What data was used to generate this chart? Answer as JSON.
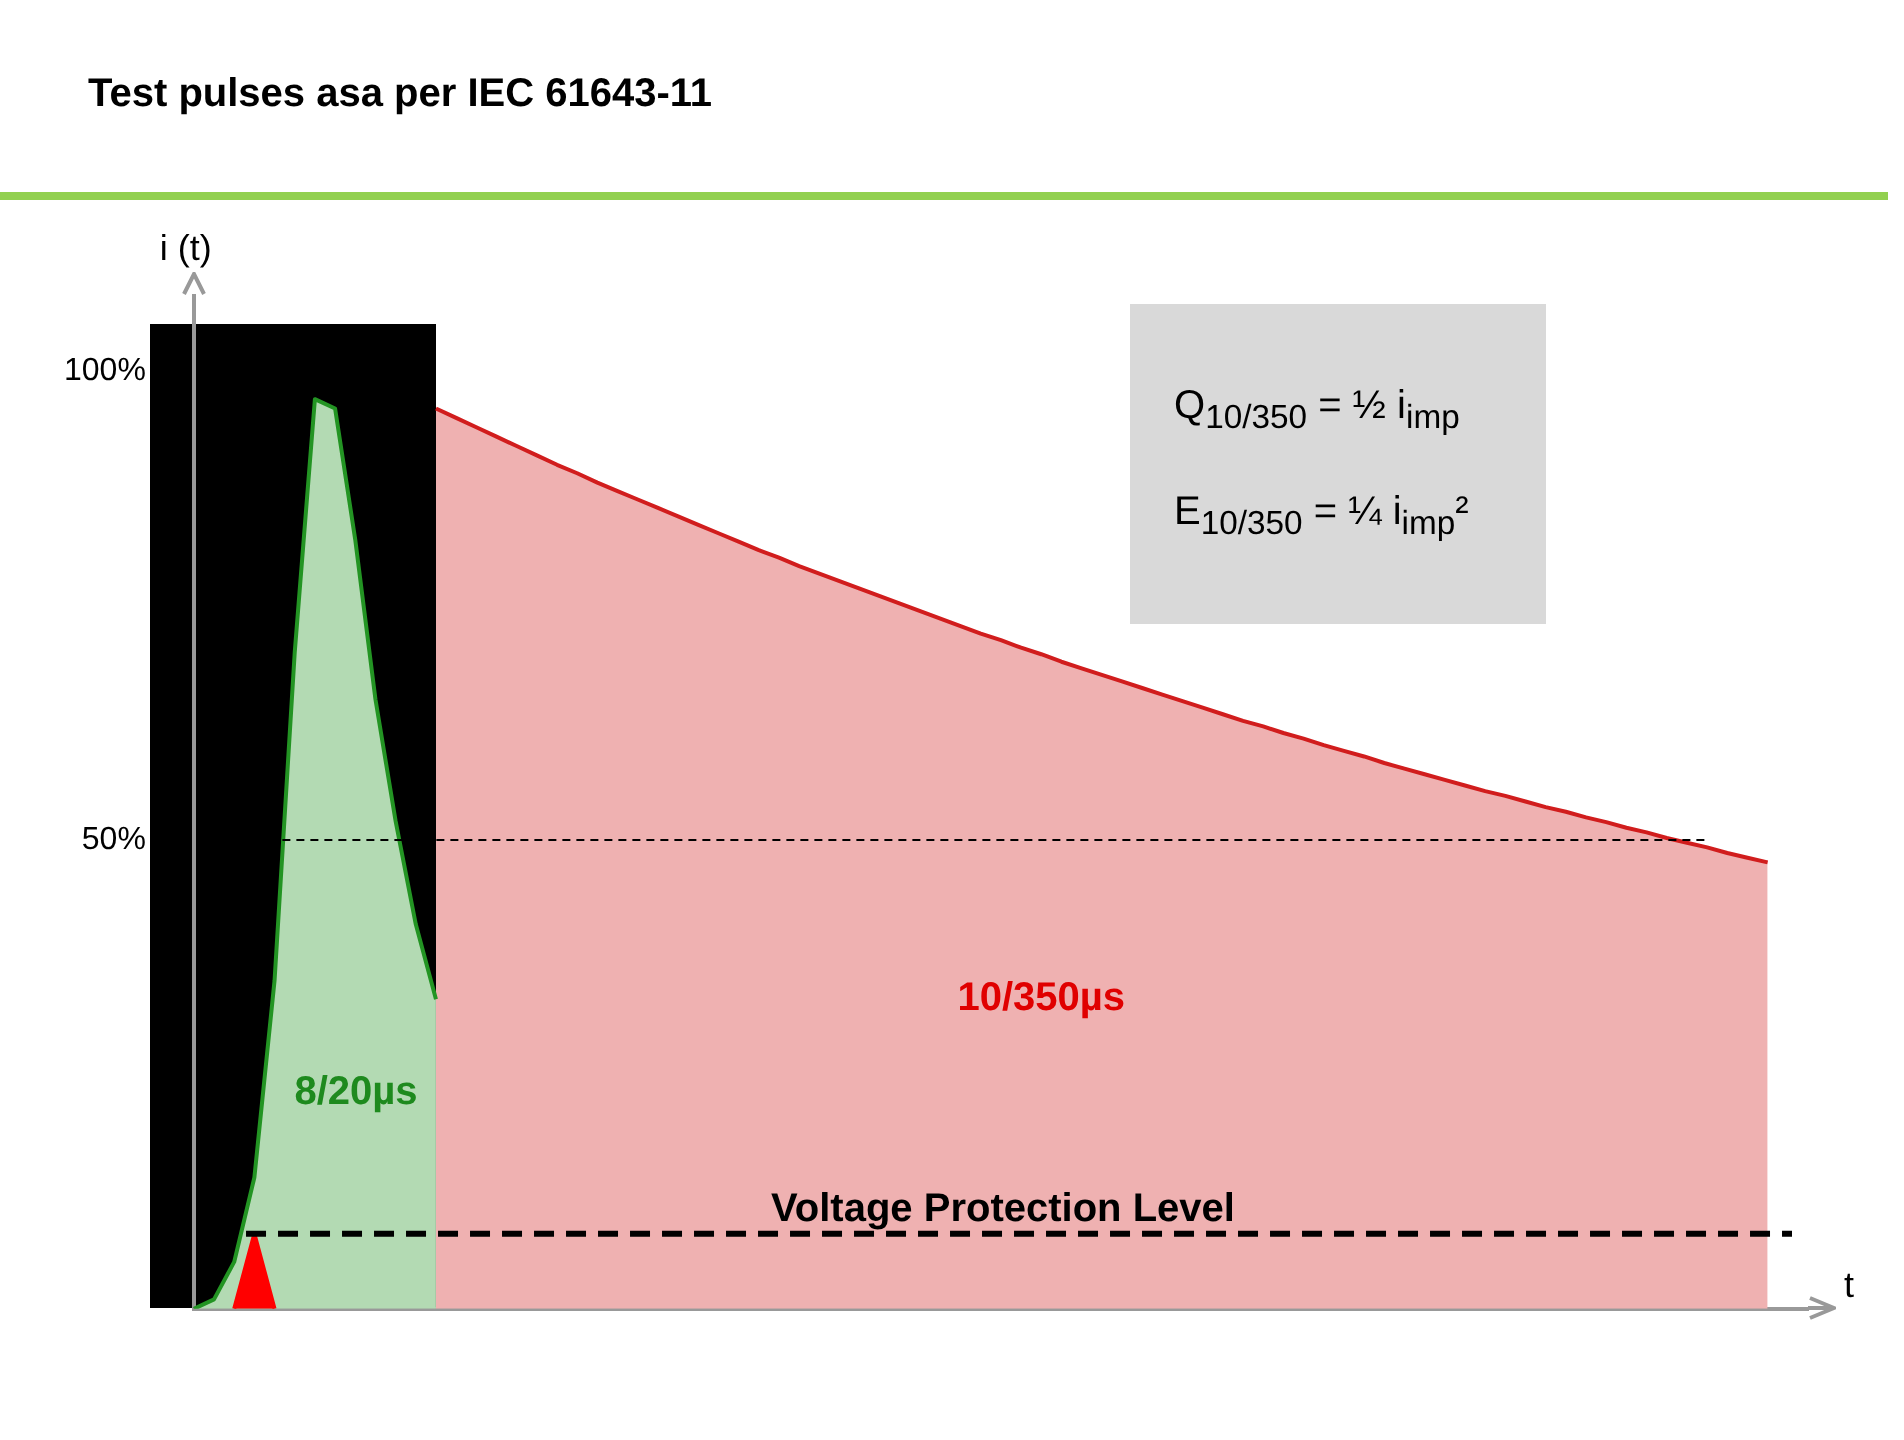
{
  "chart_data": {
    "type": "area",
    "title": "Test pulses asa per IEC 61643-11",
    "xlabel": "t",
    "ylabel": "i (t)",
    "categories": [
      null,
      null,
      null,
      null,
      null,
      null,
      null,
      null,
      null,
      null,
      null,
      null,
      null,
      null,
      null,
      null,
      null,
      null,
      null,
      null,
      null,
      null,
      null,
      null,
      null,
      null,
      null,
      null,
      null,
      null,
      null,
      null,
      null,
      null,
      null,
      null,
      null,
      null,
      null,
      null,
      null,
      null,
      null,
      null,
      null,
      null,
      null,
      null,
      null,
      null,
      null,
      null,
      null,
      null,
      null,
      null,
      null,
      null,
      null,
      null,
      null,
      null,
      null,
      null,
      null,
      null,
      null,
      null,
      null,
      null,
      null,
      null,
      null,
      null,
      null,
      null,
      null,
      null,
      null,
      null,
      null
    ],
    "series": [
      {
        "name": "10/350µs",
        "color": "#efb1b1",
        "values": [
          null,
          null,
          null,
          null,
          null,
          null,
          null,
          null,
          null,
          null,
          null,
          null,
          96.0,
          95.0,
          94.0,
          93.0,
          92.0,
          91.0,
          90.0,
          89.1,
          88.1,
          87.2,
          86.3,
          85.4,
          84.5,
          83.6,
          82.7,
          81.8,
          80.9,
          80.1,
          79.2,
          78.4,
          77.6,
          76.8,
          76.0,
          75.2,
          74.4,
          73.6,
          72.8,
          72.0,
          71.3,
          70.5,
          69.8,
          69.0,
          68.3,
          67.6,
          66.9,
          66.2,
          65.5,
          64.8,
          64.1,
          63.4,
          62.7,
          62.1,
          61.4,
          60.8,
          60.1,
          59.5,
          58.9,
          58.2,
          57.6,
          57.0,
          56.4,
          55.8,
          55.2,
          54.7,
          54.1,
          53.5,
          53.0,
          52.4,
          51.9,
          51.3,
          50.8,
          50.2,
          49.7,
          49.2,
          48.6,
          48.1,
          47.6,
          null,
          null
        ]
      },
      {
        "name": "8/20µs",
        "color": "#b3dab3",
        "values": [
          0,
          1,
          5,
          14,
          35,
          70,
          97,
          96,
          82,
          65,
          52,
          41,
          33,
          null,
          null,
          null,
          null,
          null,
          null,
          null,
          null,
          null,
          null,
          null,
          null,
          null,
          null,
          null,
          null,
          null,
          null,
          null,
          null,
          null,
          null,
          null,
          null,
          null,
          null,
          null,
          null,
          null,
          null,
          null,
          null,
          null,
          null,
          null,
          null,
          null,
          null,
          null,
          null,
          null,
          null,
          null,
          null,
          null,
          null,
          null,
          null,
          null,
          null,
          null,
          null,
          null,
          null,
          null,
          null,
          null,
          null,
          null,
          null,
          null,
          null,
          null,
          null,
          null,
          null,
          null,
          null
        ]
      },
      {
        "color": "#ff0000",
        "values": [
          null,
          null,
          0,
          8,
          0,
          null,
          null,
          null,
          null,
          null,
          null,
          null,
          null,
          null,
          null,
          null,
          null,
          null,
          null,
          null,
          null,
          null,
          null,
          null,
          null,
          null,
          null,
          null,
          null,
          null,
          null,
          null,
          null,
          null,
          null,
          null,
          null,
          null,
          null,
          null,
          null,
          null,
          null,
          null,
          null,
          null,
          null,
          null,
          null,
          null,
          null,
          null,
          null,
          null,
          null,
          null,
          null,
          null,
          null,
          null,
          null,
          null,
          null,
          null,
          null,
          null,
          null,
          null,
          null,
          null,
          null,
          null,
          null,
          null,
          null,
          null,
          null,
          null,
          null,
          null,
          null
        ]
      }
    ],
    "ylim": [
      0,
      108
    ],
    "yticks": [
      {
        "value": 100,
        "label": "100%"
      },
      {
        "value": 50,
        "label": "50%"
      }
    ],
    "grid": false,
    "legend": false,
    "ref_lines": [
      {
        "axis": "y",
        "value": 50,
        "line_style": "dashed"
      },
      {
        "axis": "y",
        "value": 8,
        "label": "Voltage Protection Level",
        "line_style": "dashed"
      }
    ],
    "annotations": [
      "Q$_{10/350}$ =  ½  i$_{imp}$",
      "E$_{10/350}$ =  ¼  i$_{imp}$²"
    ]
  }
}
